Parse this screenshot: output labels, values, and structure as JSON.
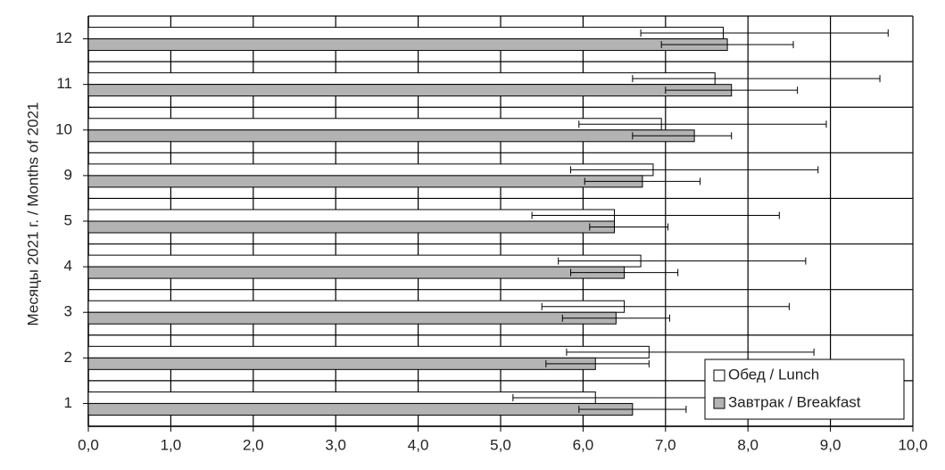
{
  "chart_data": {
    "type": "hbar",
    "ylabel": "Месяцы 2021 г. / Months of 2021",
    "categories": [
      "1",
      "2",
      "3",
      "4",
      "5",
      "9",
      "10",
      "11",
      "12"
    ],
    "series": [
      {
        "name": "Обед / Lunch",
        "color": "#ffffff",
        "values": [
          6.15,
          6.8,
          6.5,
          6.7,
          6.38,
          6.85,
          6.95,
          7.6,
          7.7
        ],
        "errors_minus": [
          1.0,
          1.0,
          1.0,
          1.0,
          1.0,
          1.0,
          1.0,
          1.0,
          1.0
        ],
        "errors_plus": [
          2.0,
          2.0,
          2.0,
          2.0,
          2.0,
          2.0,
          2.0,
          2.0,
          2.0
        ]
      },
      {
        "name": "Завтрак / Breakfast",
        "color": "#b3b3b3",
        "values": [
          6.6,
          6.15,
          6.4,
          6.5,
          6.38,
          6.72,
          7.35,
          7.8,
          7.75
        ],
        "errors_minus": [
          0.65,
          0.6,
          0.65,
          0.65,
          0.3,
          0.7,
          0.75,
          0.8,
          0.8
        ],
        "errors_plus": [
          0.65,
          0.65,
          0.65,
          0.65,
          0.65,
          0.7,
          0.45,
          0.8,
          0.8
        ]
      }
    ],
    "xlim": [
      0,
      10
    ],
    "xticks": [
      {
        "value": 0,
        "label": "0,0"
      },
      {
        "value": 1,
        "label": "1,0"
      },
      {
        "value": 2,
        "label": "2,0"
      },
      {
        "value": 3,
        "label": "3,0"
      },
      {
        "value": 4,
        "label": "4,0"
      },
      {
        "value": 5,
        "label": "5,0"
      },
      {
        "value": 6,
        "label": "6,0"
      },
      {
        "value": 7,
        "label": "7,0"
      },
      {
        "value": 8,
        "label": "8,0"
      },
      {
        "value": 9,
        "label": "9,0"
      },
      {
        "value": 10,
        "label": "10,0"
      }
    ],
    "grid": true,
    "legend": "lower right"
  }
}
